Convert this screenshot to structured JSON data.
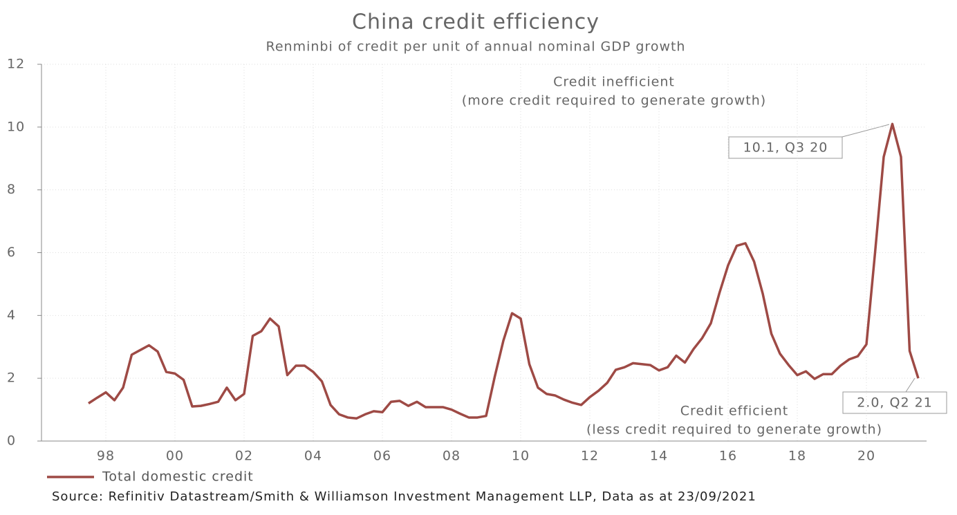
{
  "chart_data": {
    "type": "line",
    "title": "China credit efficiency",
    "subtitle": "Renminbi of credit per unit of annual nominal GDP growth",
    "annotations": [
      "Credit inefficient",
      "(more credit required to generate growth)",
      "Credit efficient",
      "(less credit required to generate growth)",
      "10.1, Q3 20",
      "2.0, Q2 21"
    ],
    "source": "Source: Refinitiv Datastream/Smith & Williamson Investment Management LLP, Data as at 23/09/2021",
    "x": [
      1997.5,
      1997.75,
      1998,
      1998.25,
      1998.5,
      1998.75,
      1999,
      1999.25,
      1999.5,
      1999.75,
      2000,
      2000.25,
      2000.5,
      2000.75,
      2001,
      2001.25,
      2001.5,
      2001.75,
      2002,
      2002.25,
      2002.5,
      2002.75,
      2003,
      2003.25,
      2003.5,
      2003.75,
      2004,
      2004.25,
      2004.5,
      2004.75,
      2005,
      2005.25,
      2005.5,
      2005.75,
      2006,
      2006.25,
      2006.5,
      2006.75,
      2007,
      2007.25,
      2007.5,
      2007.75,
      2008,
      2008.25,
      2008.5,
      2008.75,
      2009,
      2009.25,
      2009.5,
      2009.75,
      2010,
      2010.25,
      2010.5,
      2010.75,
      2011,
      2011.25,
      2011.5,
      2011.75,
      2012,
      2012.25,
      2012.5,
      2012.75,
      2013,
      2013.25,
      2013.5,
      2013.75,
      2014,
      2014.25,
      2014.5,
      2014.75,
      2015,
      2015.25,
      2015.5,
      2015.75,
      2016,
      2016.25,
      2016.5,
      2016.75,
      2017,
      2017.25,
      2017.5,
      2017.75,
      2018,
      2018.25,
      2018.5,
      2018.75,
      2019,
      2019.25,
      2019.5,
      2019.75,
      2020,
      2020.25,
      2020.5,
      2020.75,
      2021,
      2021.25,
      2021.5
    ],
    "series": [
      {
        "name": "Total domestic credit",
        "color": "#9e4a45",
        "values": [
          1.2,
          1.38,
          1.55,
          1.3,
          1.7,
          2.75,
          2.9,
          3.05,
          2.85,
          2.2,
          2.15,
          1.95,
          1.1,
          1.12,
          1.18,
          1.25,
          1.7,
          1.3,
          1.5,
          3.35,
          3.5,
          3.9,
          3.65,
          2.1,
          2.4,
          2.4,
          2.2,
          1.9,
          1.15,
          0.85,
          0.75,
          0.72,
          0.85,
          0.95,
          0.92,
          1.25,
          1.28,
          1.12,
          1.25,
          1.08,
          1.08,
          1.08,
          1.0,
          0.87,
          0.75,
          0.75,
          0.8,
          2.05,
          3.2,
          4.07,
          3.9,
          2.45,
          1.7,
          1.5,
          1.45,
          1.32,
          1.22,
          1.15,
          1.4,
          1.6,
          1.85,
          2.27,
          2.35,
          2.48,
          2.45,
          2.42,
          2.25,
          2.35,
          2.72,
          2.5,
          2.93,
          3.28,
          3.75,
          4.72,
          5.6,
          6.22,
          6.3,
          5.72,
          4.7,
          3.42,
          2.78,
          2.42,
          2.1,
          2.22,
          1.98,
          2.13,
          2.13,
          2.4,
          2.6,
          2.7,
          3.08,
          6.0,
          9.05,
          10.1,
          9.05,
          2.87,
          2.0
        ]
      }
    ],
    "xlim": [
      1996.14,
      2021.74
    ],
    "xticks": [
      {
        "value": 1998,
        "label": "98"
      },
      {
        "value": 2000,
        "label": "00"
      },
      {
        "value": 2002,
        "label": "02"
      },
      {
        "value": 2004,
        "label": "04"
      },
      {
        "value": 2006,
        "label": "06"
      },
      {
        "value": 2008,
        "label": "08"
      },
      {
        "value": 2010,
        "label": "10"
      },
      {
        "value": 2012,
        "label": "12"
      },
      {
        "value": 2014,
        "label": "14"
      },
      {
        "value": 2016,
        "label": "16"
      },
      {
        "value": 2018,
        "label": "18"
      },
      {
        "value": 2020,
        "label": "20"
      }
    ],
    "ylim": [
      0,
      12
    ],
    "yticks": [
      0,
      2,
      4,
      6,
      8,
      10,
      12
    ],
    "grid": true
  }
}
